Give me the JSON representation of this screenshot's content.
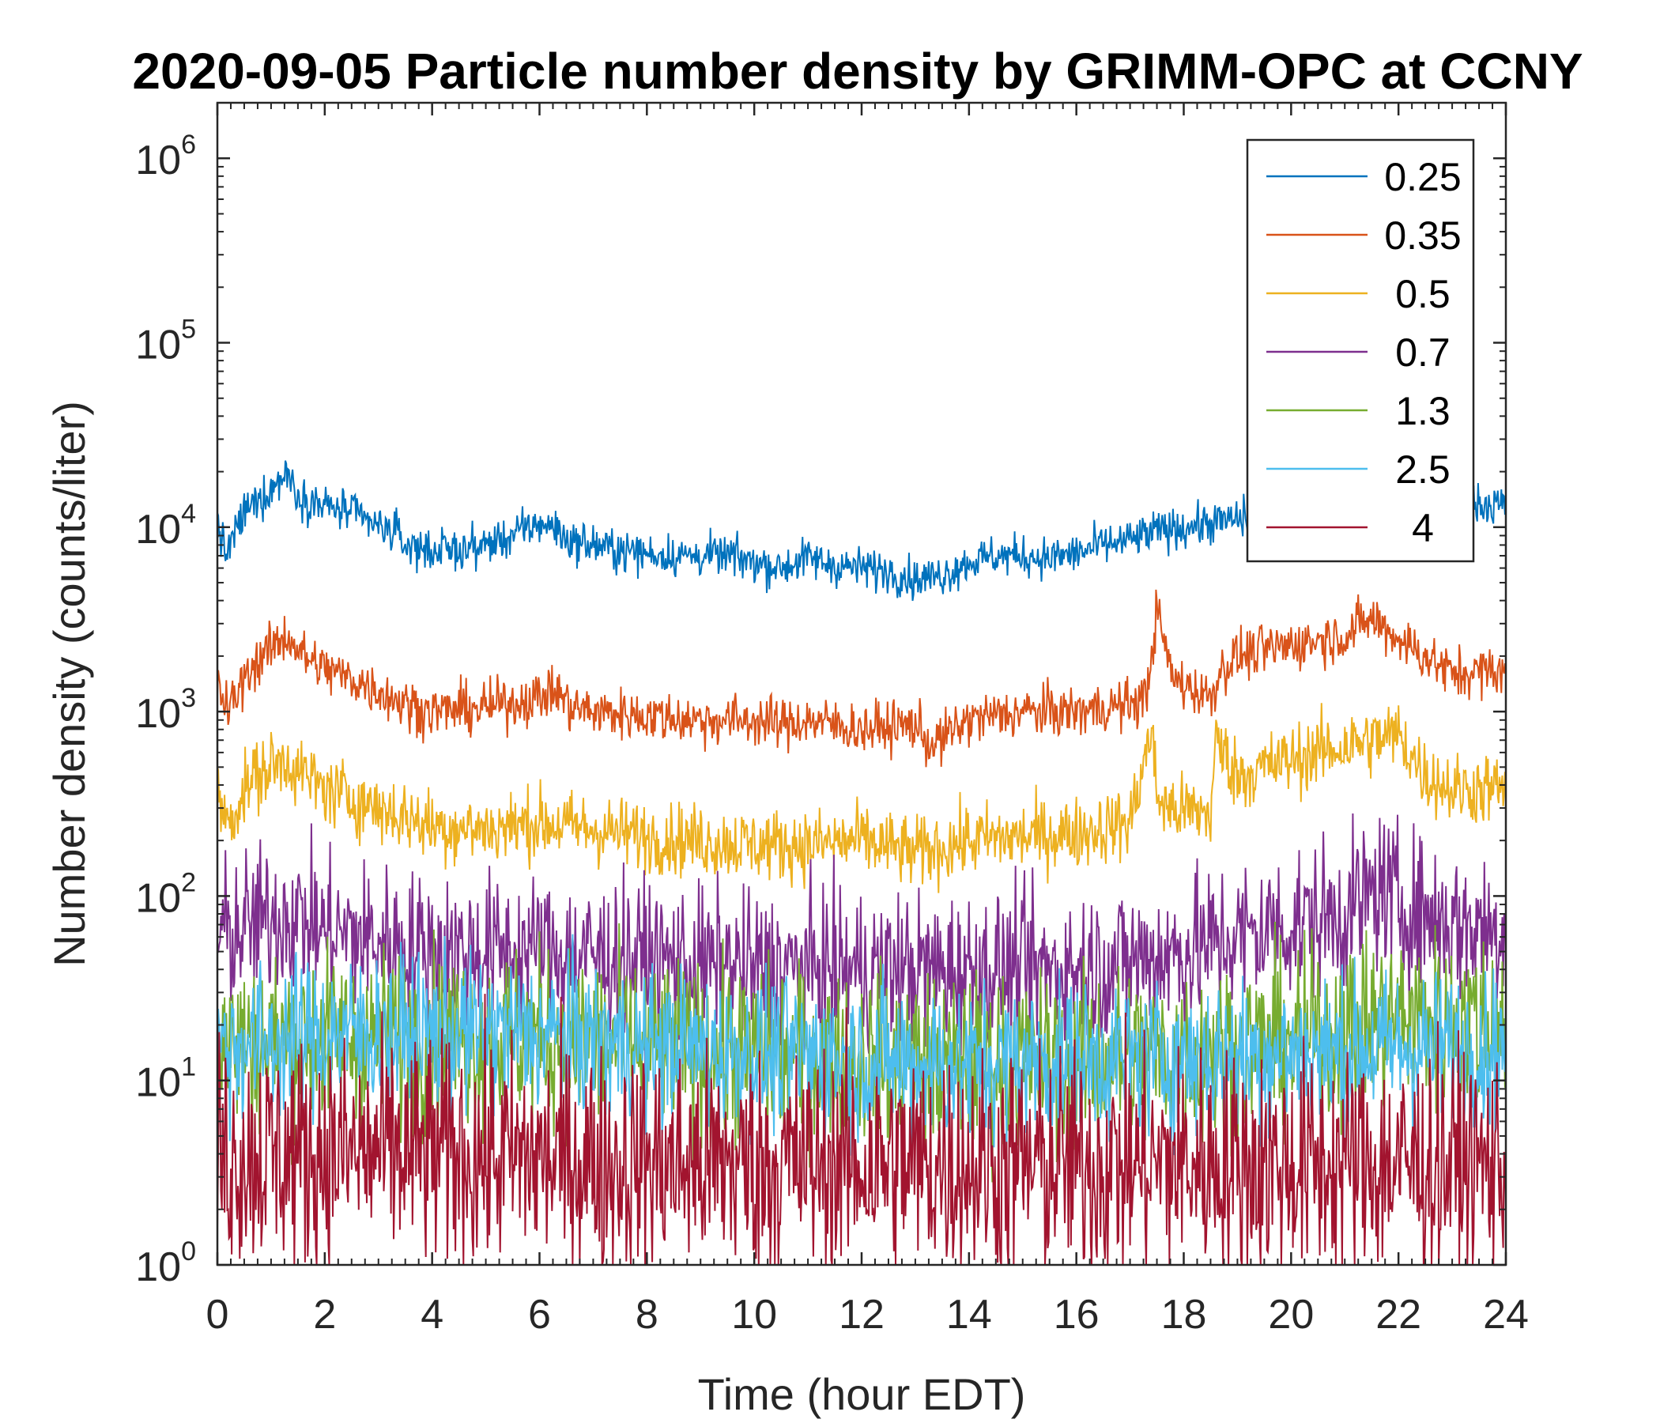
{
  "chart_data": {
    "type": "line",
    "title": "2020-09-05 Particle number density by GRIMM-OPC at CCNY",
    "xlabel": "Time (hour EDT)",
    "ylabel": "Number density (counts/liter)",
    "yscale": "log",
    "xlim": [
      0,
      24
    ],
    "ylim": [
      1,
      2000000
    ],
    "xticks": [
      0,
      2,
      4,
      6,
      8,
      10,
      12,
      14,
      16,
      18,
      20,
      22,
      24
    ],
    "yticks": [
      {
        "value": 1,
        "base": "10",
        "exp": "0"
      },
      {
        "value": 10,
        "base": "10",
        "exp": "1"
      },
      {
        "value": 100,
        "base": "10",
        "exp": "2"
      },
      {
        "value": 1000,
        "base": "10",
        "exp": "3"
      },
      {
        "value": 10000,
        "base": "10",
        "exp": "4"
      },
      {
        "value": 100000,
        "base": "10",
        "exp": "5"
      },
      {
        "value": 1000000,
        "base": "10",
        "exp": "6"
      }
    ],
    "legend_position": "top-right",
    "series": [
      {
        "name": "0.25",
        "color": "#0072BD",
        "noise": 0.08,
        "x": [
          0,
          0.15,
          0.5,
          1.0,
          1.3,
          1.5,
          2.0,
          2.5,
          3.0,
          3.3,
          3.5,
          4.0,
          4.5,
          5.0,
          5.5,
          6.0,
          6.3,
          6.5,
          7.0,
          7.5,
          8.0,
          8.5,
          9.0,
          9.5,
          10.0,
          10.5,
          11.0,
          11.5,
          12.0,
          12.5,
          13.0,
          13.5,
          14.0,
          14.5,
          15.0,
          15.5,
          16.0,
          16.5,
          17.0,
          17.5,
          18.0,
          18.5,
          19.0,
          19.5,
          20.0,
          20.5,
          21.0,
          21.5,
          22.0,
          22.5,
          23.0,
          23.5,
          24.0
        ],
        "y": [
          11000,
          7000,
          12000,
          16000,
          20000,
          15000,
          13000,
          12000,
          10000,
          9500,
          8000,
          7500,
          7500,
          8000,
          9000,
          10500,
          10000,
          8500,
          8000,
          7500,
          7200,
          7000,
          7000,
          7000,
          6500,
          6000,
          6800,
          6200,
          6000,
          5800,
          5200,
          5500,
          6500,
          7000,
          7000,
          6800,
          7200,
          8000,
          8500,
          9500,
          10000,
          10500,
          11000,
          12000,
          12500,
          13000,
          13500,
          14000,
          14000,
          13500,
          13500,
          13500,
          13000
        ]
      },
      {
        "name": "0.35",
        "color": "#D95319",
        "noise": 0.1,
        "x": [
          0,
          0.2,
          0.6,
          1.0,
          1.3,
          1.6,
          2.0,
          2.5,
          3.0,
          3.5,
          4.0,
          5.0,
          6.0,
          6.3,
          6.6,
          7.0,
          8.0,
          9.0,
          10.0,
          10.5,
          11.0,
          12.0,
          13.0,
          13.3,
          14.0,
          15.0,
          16.0,
          17.0,
          17.3,
          17.5,
          17.8,
          18.5,
          18.7,
          19.0,
          20.0,
          21.0,
          21.5,
          22.0,
          22.5,
          23.0,
          24.0
        ],
        "y": [
          1400,
          1000,
          1700,
          2200,
          2600,
          2000,
          1700,
          1500,
          1300,
          1100,
          1000,
          1050,
          1200,
          1300,
          1050,
          1000,
          950,
          900,
          900,
          850,
          900,
          800,
          850,
          650,
          900,
          1000,
          1000,
          1100,
          1200,
          3500,
          1500,
          1200,
          1700,
          2000,
          2300,
          2600,
          3200,
          2500,
          2000,
          1600,
          1700
        ]
      },
      {
        "name": "0.5",
        "color": "#EDB120",
        "noise": 0.14,
        "x": [
          0,
          0.2,
          0.6,
          1.0,
          1.3,
          1.6,
          2.0,
          3.0,
          4.0,
          5.0,
          6.0,
          7.0,
          8.0,
          9.0,
          10.0,
          11.0,
          12.0,
          13.0,
          14.0,
          15.0,
          16.0,
          17.0,
          17.4,
          17.5,
          17.7,
          18.5,
          18.6,
          19.0,
          20.0,
          21.0,
          22.0,
          22.5,
          23.0,
          24.0
        ],
        "y": [
          350,
          250,
          420,
          500,
          550,
          450,
          380,
          300,
          240,
          230,
          250,
          230,
          210,
          200,
          190,
          190,
          200,
          170,
          200,
          210,
          220,
          250,
          800,
          350,
          300,
          280,
          700,
          450,
          550,
          650,
          750,
          450,
          380,
          380
        ]
      },
      {
        "name": "0.7",
        "color": "#7E2F8E",
        "noise": 0.3,
        "x": [
          0,
          1.3,
          2.0,
          4.0,
          6.0,
          8.0,
          10.0,
          12.0,
          14.0,
          16.0,
          17.0,
          18.0,
          19.0,
          20.0,
          21.0,
          21.7,
          22.0,
          23.0,
          24.0
        ],
        "y": [
          60,
          80,
          65,
          50,
          50,
          45,
          40,
          40,
          40,
          40,
          45,
          50,
          60,
          70,
          80,
          110,
          90,
          70,
          65
        ]
      },
      {
        "name": "1.3",
        "color": "#77AC30",
        "noise": 0.35,
        "x": [
          0,
          2.0,
          4.0,
          6.0,
          8.0,
          10.0,
          12.0,
          14.0,
          16.0,
          18.0,
          20.0,
          22.0,
          24.0
        ],
        "y": [
          15,
          17,
          17,
          17,
          15,
          14,
          13,
          12,
          13,
          14,
          16,
          22,
          20
        ]
      },
      {
        "name": "2.5",
        "color": "#4DBEEE",
        "noise": 0.3,
        "x": [
          0,
          2.0,
          4.0,
          6.0,
          8.0,
          10.0,
          12.0,
          14.0,
          16.0,
          18.0,
          20.0,
          22.0,
          24.0
        ],
        "y": [
          15,
          18,
          18,
          18,
          15,
          14,
          13,
          12,
          13,
          13,
          14,
          15,
          15
        ]
      },
      {
        "name": "4",
        "color": "#A2142F",
        "noise": 0.45,
        "x": [
          0,
          4.0,
          8.0,
          12.0,
          16.0,
          20.0,
          24.0
        ],
        "y": [
          4,
          4,
          3.5,
          3.5,
          3.5,
          3.5,
          3.5
        ]
      }
    ]
  }
}
